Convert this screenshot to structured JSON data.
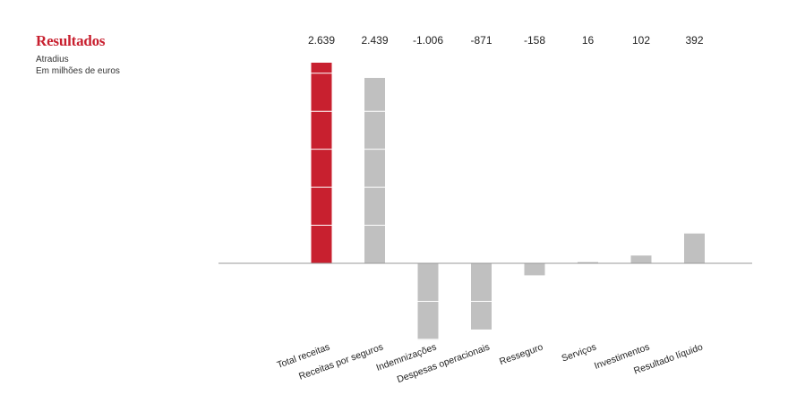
{
  "chart_data": {
    "type": "bar",
    "title": "Resultados",
    "subtitle_lines": [
      "Atradius",
      "Em milhões de euros"
    ],
    "categories": [
      "Total receitas",
      "Receitas por seguros",
      "Indemnizações",
      "Despesas operacionais",
      "Resseguro",
      "Serviços",
      "Investimentos",
      "Resultado líquido"
    ],
    "values": [
      2639,
      2439,
      -1006,
      -871,
      -158,
      16,
      102,
      392
    ],
    "value_labels": [
      "2.639",
      "2.439",
      "-1.006",
      "-871",
      "-158",
      "16",
      "102",
      "392"
    ],
    "xlabel": "",
    "ylabel": "",
    "ylim": [
      -1006,
      2639
    ],
    "grid": false,
    "legend": "none",
    "colors": {
      "highlight": "#c8202f",
      "bar": "#c0c0c0",
      "axis": "#999999",
      "segment_line": "#ffffff"
    },
    "highlight_index": 0,
    "segment_step": 500
  }
}
